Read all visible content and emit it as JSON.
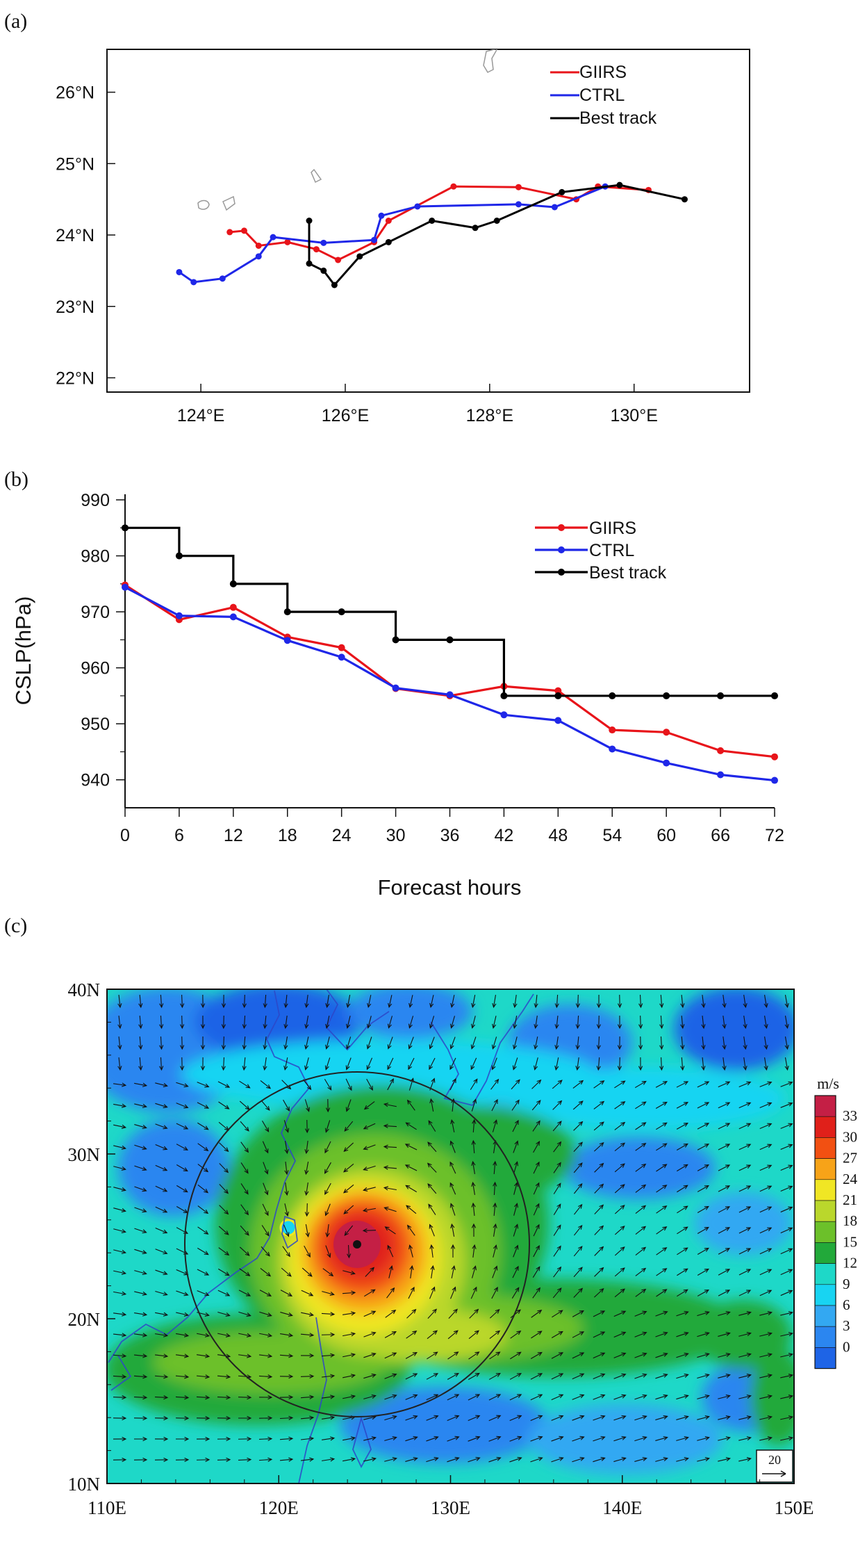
{
  "panels": {
    "a": "(a)",
    "b": "(b)",
    "c": "(c)"
  },
  "chart_data": [
    {
      "id": "a",
      "type": "line",
      "title": "",
      "xlabel": "",
      "ylabel": "",
      "xlim": [
        122.7,
        131.6
      ],
      "ylim": [
        21.8,
        26.6
      ],
      "xticks": [
        124,
        126,
        128,
        130
      ],
      "xtick_labels": [
        "124°E",
        "126°E",
        "128°E",
        "130°E"
      ],
      "yticks": [
        22,
        23,
        24,
        25,
        26
      ],
      "ytick_labels": [
        "22°N",
        "23°N",
        "24°N",
        "25°N",
        "26°N"
      ],
      "legend": [
        "GIIRS",
        "CTRL",
        "Best track"
      ],
      "legend_position": "top-right",
      "series": [
        {
          "name": "GIIRS",
          "color": "#e8141a",
          "lon": [
            124.4,
            124.6,
            124.8,
            125.2,
            125.6,
            125.9,
            126.4,
            126.6,
            127.5,
            128.4,
            129.2,
            129.5,
            130.2
          ],
          "lat": [
            24.04,
            24.06,
            23.85,
            23.9,
            23.8,
            23.65,
            23.9,
            24.2,
            24.68,
            24.67,
            24.5,
            24.68,
            24.63
          ]
        },
        {
          "name": "CTRL",
          "color": "#1f27e8",
          "lon": [
            123.7,
            123.9,
            124.3,
            124.8,
            125.0,
            125.7,
            126.4,
            126.5,
            127.0,
            128.4,
            128.9,
            129.6
          ],
          "lat": [
            23.48,
            23.34,
            23.39,
            23.7,
            23.97,
            23.89,
            23.93,
            24.27,
            24.4,
            24.43,
            24.39,
            24.68
          ]
        },
        {
          "name": "Best track",
          "color": "#000000",
          "lon": [
            125.5,
            125.5,
            125.7,
            125.85,
            126.2,
            126.6,
            127.2,
            127.8,
            128.1,
            129.0,
            129.8,
            130.7
          ],
          "lat": [
            24.2,
            23.6,
            23.5,
            23.3,
            23.7,
            23.9,
            24.2,
            24.1,
            24.2,
            24.6,
            24.7,
            24.5
          ]
        }
      ]
    },
    {
      "id": "b",
      "type": "line",
      "title": "",
      "xlabel": "Forecast hours",
      "ylabel": "CSLP(hPa)",
      "xlim": [
        0,
        72
      ],
      "ylim": [
        935,
        991
      ],
      "x": [
        0,
        6,
        12,
        18,
        24,
        30,
        36,
        42,
        48,
        54,
        60,
        66,
        72
      ],
      "xtick_labels": [
        "0",
        "6",
        "12",
        "18",
        "24",
        "30",
        "36",
        "42",
        "48",
        "54",
        "60",
        "66",
        "72"
      ],
      "yticks": [
        940,
        950,
        960,
        970,
        980,
        990
      ],
      "ytick_labels": [
        "940",
        "950",
        "960",
        "970",
        "980",
        "990"
      ],
      "legend": [
        "GIIRS",
        "CTRL",
        "Best track"
      ],
      "legend_position": "top-right",
      "series": [
        {
          "name": "GIIRS",
          "color": "#e8141a",
          "values": [
            974.8,
            968.6,
            970.8,
            965.5,
            963.6,
            956.3,
            955.0,
            956.7,
            955.9,
            948.9,
            948.5,
            945.2,
            944.1
          ]
        },
        {
          "name": "CTRL",
          "color": "#1f27e8",
          "values": [
            974.4,
            969.3,
            969.1,
            964.9,
            961.9,
            956.4,
            955.2,
            951.6,
            950.6,
            945.5,
            943.0,
            940.9,
            939.9
          ]
        },
        {
          "name": "Best track",
          "color": "#000000",
          "values": [
            985,
            980,
            975,
            970,
            970,
            965,
            965,
            955,
            955,
            955,
            955,
            955,
            955
          ],
          "step": true
        }
      ]
    },
    {
      "id": "c",
      "type": "heatmap",
      "title": "",
      "xlim": [
        110,
        150
      ],
      "ylim": [
        10,
        40
      ],
      "xtick_labels": [
        "110E",
        "120E",
        "130E",
        "140E",
        "150E"
      ],
      "ytick_labels": [
        "10N",
        "20N",
        "30N",
        "40N"
      ],
      "colorbar_title": "m/s",
      "colorbar_levels": [
        0,
        3,
        6,
        9,
        12,
        15,
        18,
        21,
        24,
        27,
        30,
        33
      ],
      "colorbar_labels": [
        "0",
        "3",
        "6",
        "9",
        "12",
        "15",
        "18",
        "21",
        "24",
        "27",
        "30",
        "33"
      ],
      "colorbar_colors": [
        "#1e64e6",
        "#2b86f0",
        "#33a8f2",
        "#18d4f2",
        "#1ed8c8",
        "#22a93a",
        "#6cc02a",
        "#bad72c",
        "#f0e624",
        "#f7a318",
        "#f25012",
        "#e0201a",
        "#c41f45"
      ],
      "typhoon_center": [
        124.8,
        23.8
      ],
      "circle_radius_deg": 9.2,
      "reference_vector_label": "20",
      "reference_vector_value": 20
    }
  ]
}
